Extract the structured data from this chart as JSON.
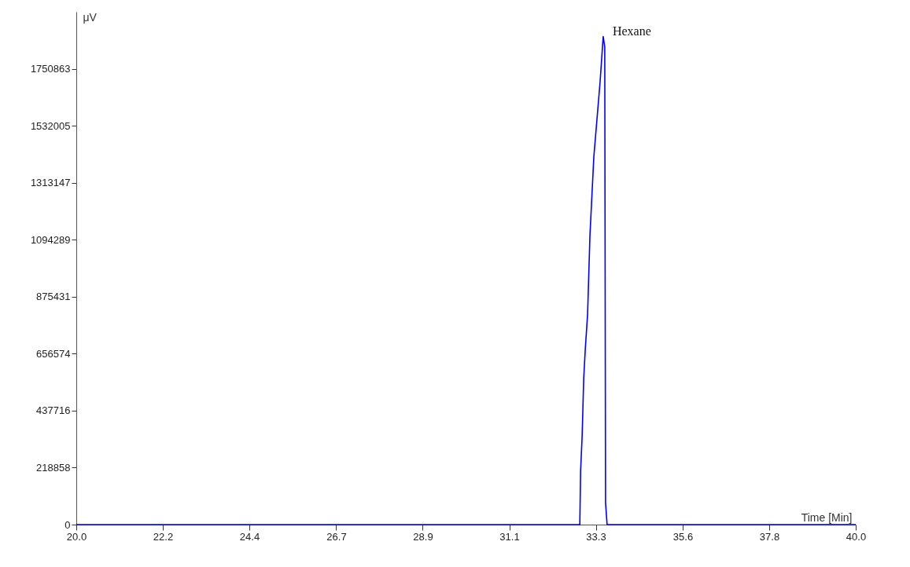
{
  "chart_data": {
    "type": "line",
    "xlabel": "Time [Min]",
    "ylabel": "μV",
    "x": [
      20,
      32.92,
      32.94,
      32.98,
      33.02,
      33.06,
      33.12,
      33.18,
      33.28,
      33.44,
      33.52,
      33.56,
      33.58,
      33.62,
      40
    ],
    "series": [
      {
        "color": "#0000ff",
        "values": [
          0,
          0,
          205000,
          341000,
          561000,
          673000,
          809000,
          1111000,
          1413000,
          1700000,
          1875000,
          1835000,
          85000,
          0,
          0
        ]
      }
    ],
    "xlim": [
      20,
      40
    ],
    "xticks": [
      {
        "value": 20,
        "label": "20.0"
      },
      {
        "value": 22.22,
        "label": "22.2"
      },
      {
        "value": 24.44,
        "label": "24.4"
      },
      {
        "value": 26.67,
        "label": "26.7"
      },
      {
        "value": 28.89,
        "label": "28.9"
      },
      {
        "value": 31.11,
        "label": "31.1"
      },
      {
        "value": 33.33,
        "label": "33.3"
      },
      {
        "value": 35.56,
        "label": "35.6"
      },
      {
        "value": 37.78,
        "label": "37.8"
      },
      {
        "value": 40,
        "label": "40.0"
      }
    ],
    "ylim": [
      0,
      1970000
    ],
    "yticks": [
      0,
      218858,
      437716,
      656574,
      875431,
      1094289,
      1313147,
      1532005,
      1750863
    ],
    "grid": false,
    "marker": "none",
    "line_style": "solid",
    "annotations": [
      {
        "text": "Hexane",
        "x": 33.52,
        "y": 1875000
      }
    ]
  }
}
